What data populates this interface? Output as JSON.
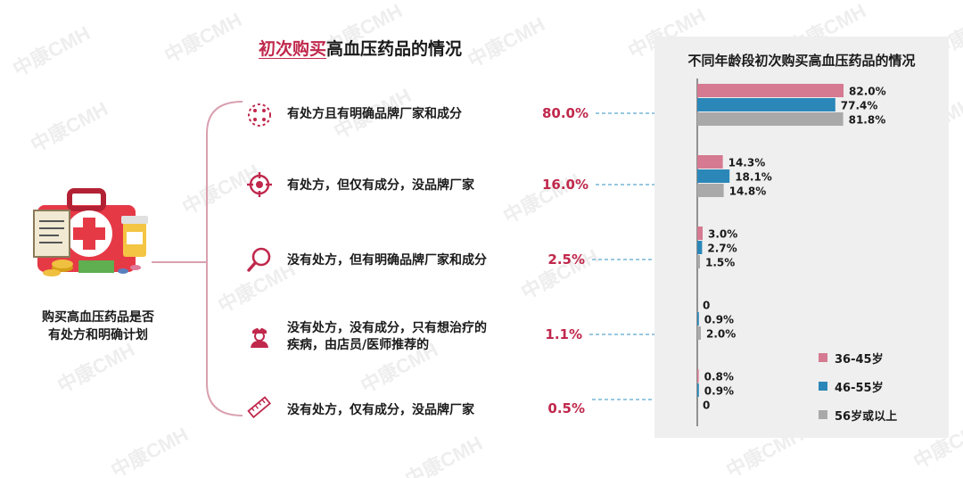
{
  "watermark": "中康CMH",
  "title": {
    "highlight": "初次购买",
    "rest": "高血压药品的情况"
  },
  "left_label": [
    "购买高血压药品是否",
    "有处方和明确计划"
  ],
  "rows": [
    {
      "icon": "dots-cross-icon",
      "lines": [
        "有处方且有明确品牌厂家和成分"
      ],
      "pct": "80.0%"
    },
    {
      "icon": "target-icon",
      "lines": [
        "有处方，但仅有成分，没品牌厂家"
      ],
      "pct": "16.0%"
    },
    {
      "icon": "magnifier-icon",
      "lines": [
        "没有处方，但有明确品牌厂家和成分"
      ],
      "pct": "2.5%"
    },
    {
      "icon": "nurse-icon",
      "lines": [
        "没有处方，没有成分，只有想治疗的",
        "疾病，由店员/医师推荐的"
      ],
      "pct": "1.1%"
    },
    {
      "icon": "ruler-icon",
      "lines": [
        "没有处方，仅有成分，没品牌厂家"
      ],
      "pct": "0.5%"
    }
  ],
  "colors": {
    "accent": "#c0284c",
    "s1": "#d57a91",
    "s2": "#2b87b8",
    "s3": "#a9a9a9",
    "line": "#d9a0b0",
    "dash": "#5aa6cc"
  },
  "chart_data": {
    "type": "bar",
    "orientation": "horizontal",
    "title": "不同年龄段初次购买高血压药品的情况",
    "categories": [
      "有处方且有明确品牌厂家和成分",
      "有处方，但仅有成分，没品牌厂家",
      "没有处方，但有明确品牌厂家和成分",
      "没有处方，没有成分，只有想治疗的疾病，由店员/医师推荐的",
      "没有处方，仅有成分，没品牌厂家"
    ],
    "series": [
      {
        "name": "36-45岁",
        "values": [
          82.0,
          14.3,
          3.0,
          0,
          0.8
        ],
        "labels": [
          "82.0%",
          "14.3%",
          "3.0%",
          "0",
          "0.8%"
        ]
      },
      {
        "name": "46-55岁",
        "values": [
          77.4,
          18.1,
          2.7,
          0.9,
          0.9
        ],
        "labels": [
          "77.4%",
          "18.1%",
          "2.7%",
          "0.9%",
          "0.9%"
        ]
      },
      {
        "name": "56岁或以上",
        "values": [
          81.8,
          14.8,
          1.5,
          2.0,
          0
        ],
        "labels": [
          "81.8%",
          "14.8%",
          "1.5%",
          "2.0%",
          "0"
        ]
      }
    ],
    "xlim": [
      0,
      100
    ],
    "grid": false,
    "legend_position": "bottom-right"
  }
}
